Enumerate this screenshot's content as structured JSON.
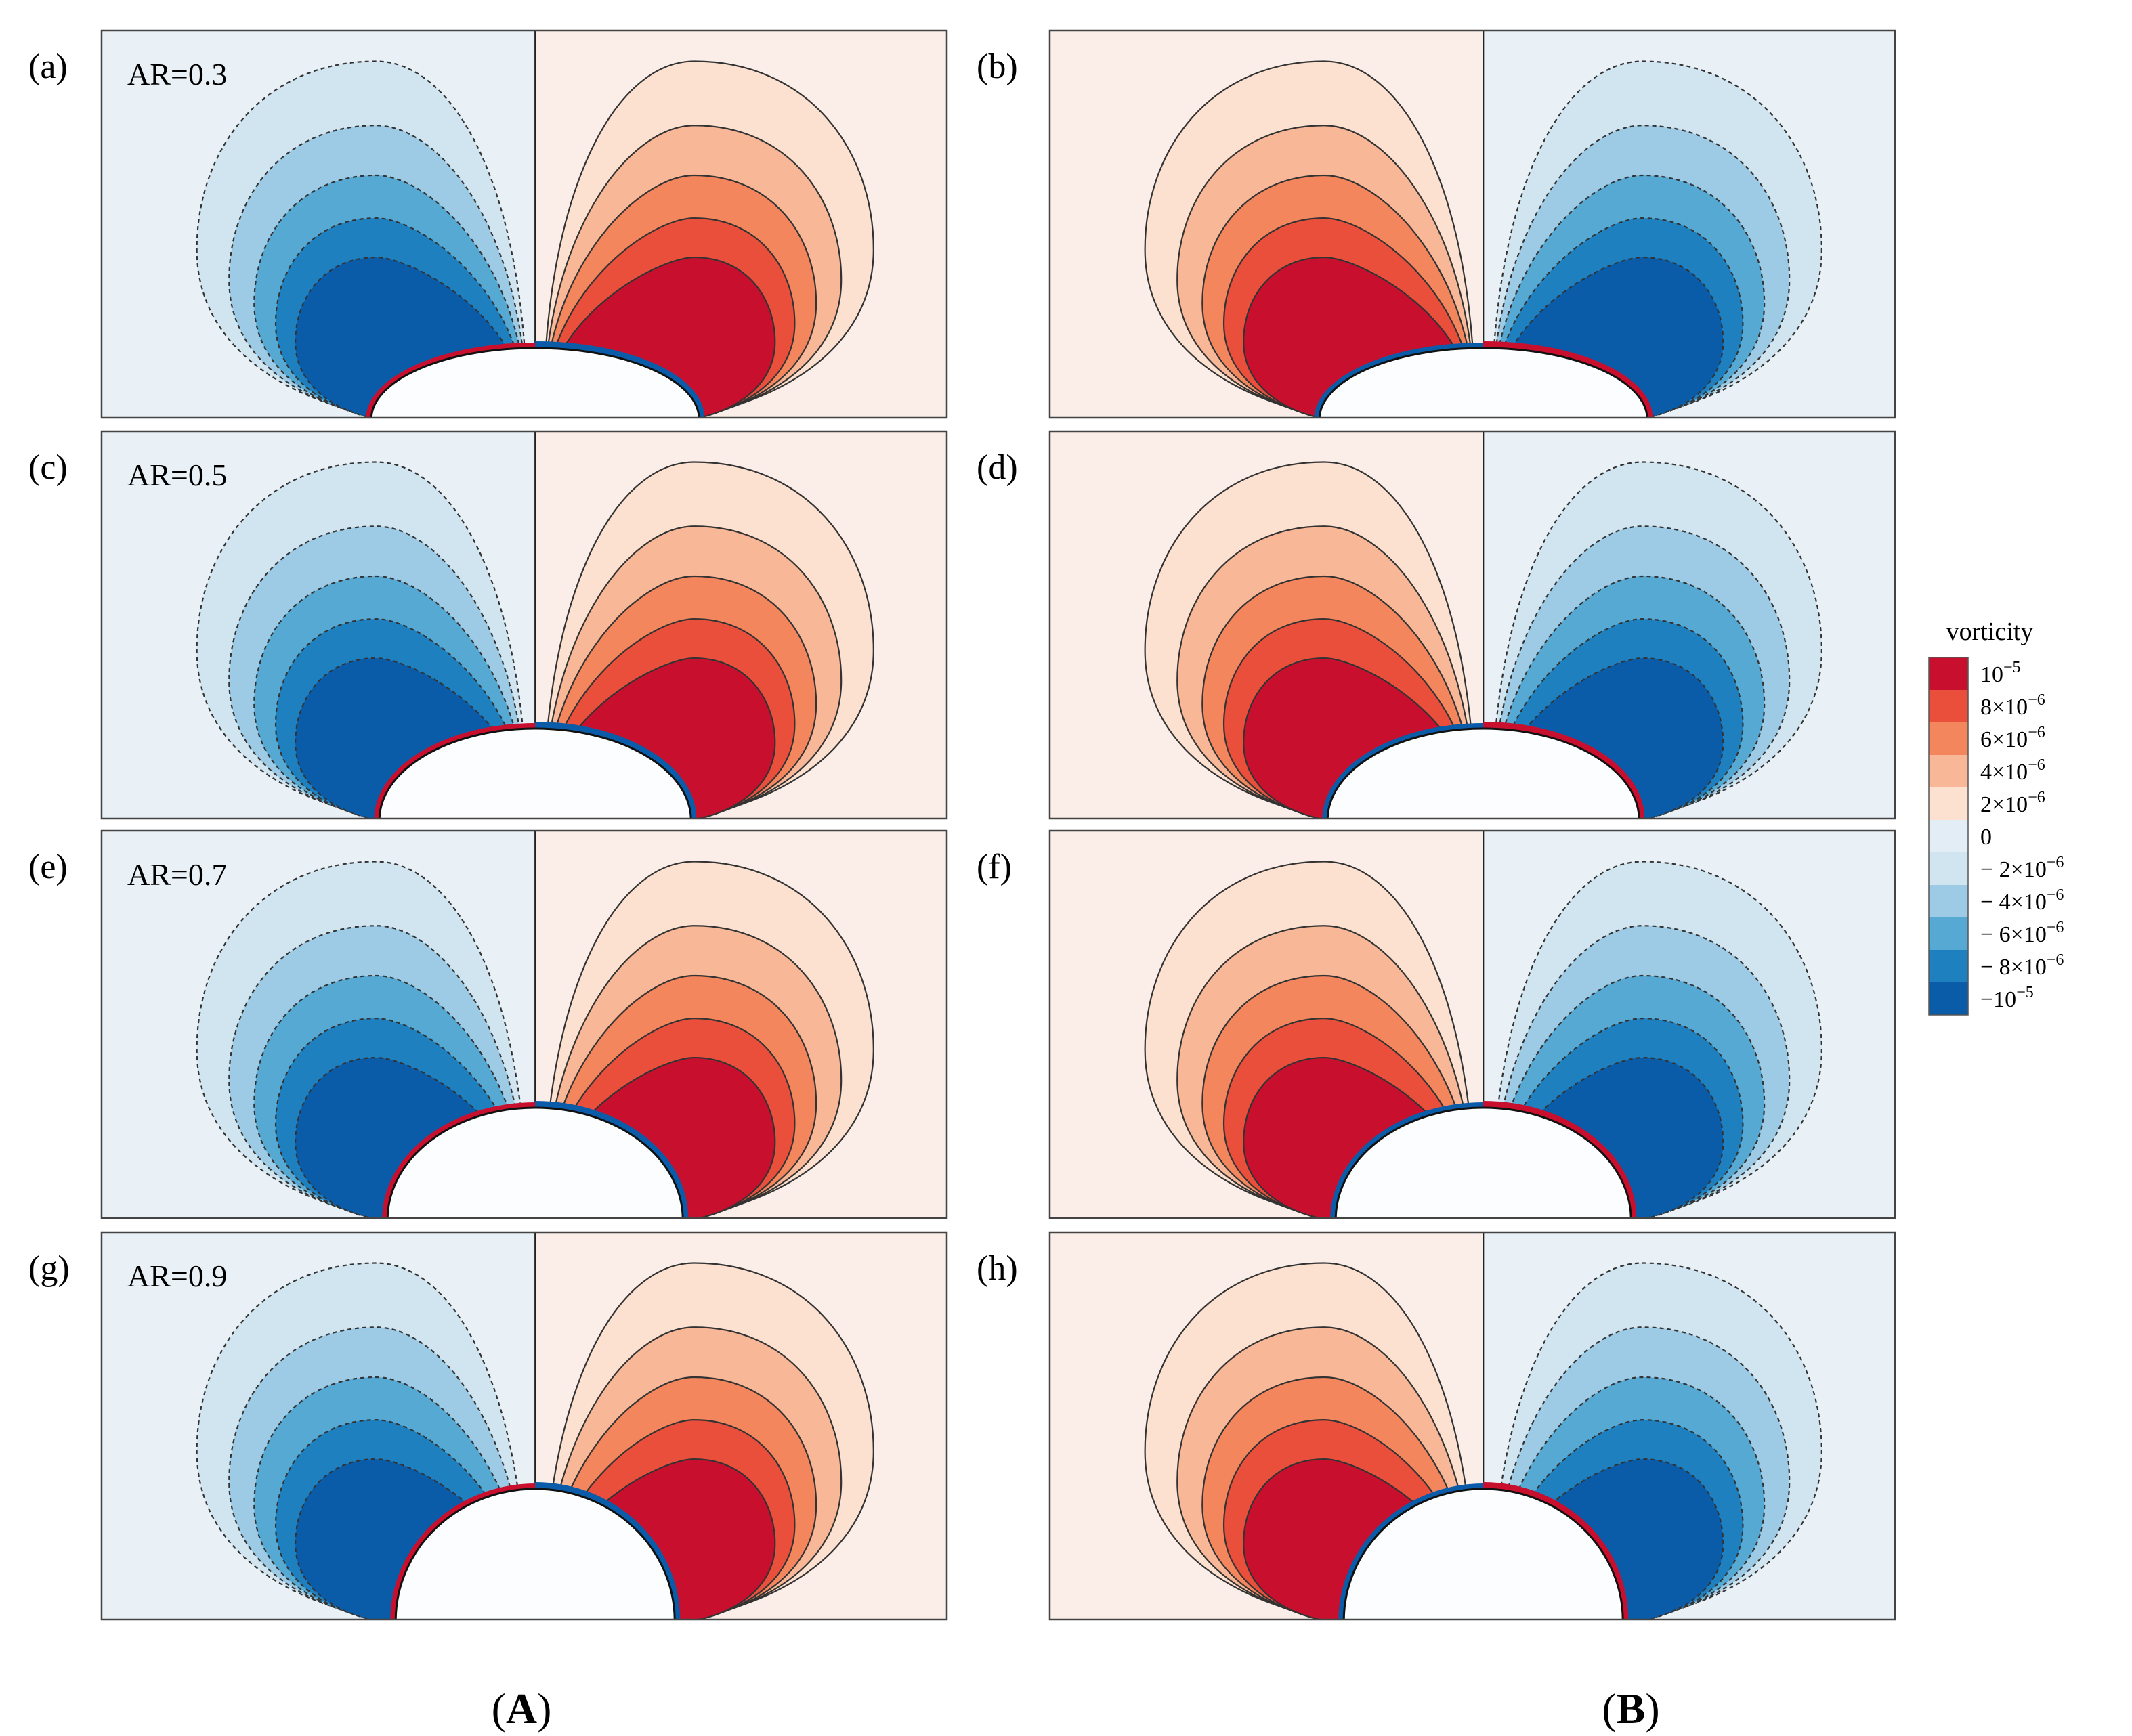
{
  "figure": {
    "panels": [
      {
        "id": "a",
        "label": "(a)",
        "ar": "AR=0.3",
        "mirror": false,
        "row": 0,
        "ratio": 0.3
      },
      {
        "id": "b",
        "label": "(b)",
        "ar": "",
        "mirror": true,
        "row": 0,
        "ratio": 0.3
      },
      {
        "id": "c",
        "label": "(c)",
        "ar": "AR=0.5",
        "mirror": false,
        "row": 1,
        "ratio": 0.5
      },
      {
        "id": "d",
        "label": "(d)",
        "ar": "",
        "mirror": true,
        "row": 1,
        "ratio": 0.5
      },
      {
        "id": "e",
        "label": "(e)",
        "ar": "AR=0.7",
        "mirror": false,
        "row": 2,
        "ratio": 0.7
      },
      {
        "id": "f",
        "label": "(f)",
        "ar": "",
        "mirror": true,
        "row": 2,
        "ratio": 0.7
      },
      {
        "id": "g",
        "label": "(g)",
        "ar": "AR=0.9",
        "mirror": false,
        "row": 3,
        "ratio": 0.9
      },
      {
        "id": "h",
        "label": "(h)",
        "ar": "",
        "mirror": true,
        "row": 3,
        "ratio": 0.9
      }
    ],
    "group_labels": {
      "left": "A",
      "right": "B"
    },
    "colorbar": {
      "title": "vorticity",
      "levels": [
        {
          "color": "#c8102e",
          "label": "10",
          "exp": "−5"
        },
        {
          "color": "#ea4f3c",
          "label": "8×10",
          "exp": "−6"
        },
        {
          "color": "#f4865e",
          "label": "6×10",
          "exp": "−6"
        },
        {
          "color": "#f8b797",
          "label": "4×10",
          "exp": "−6"
        },
        {
          "color": "#fde1d0",
          "label": "2×10",
          "exp": "−6"
        },
        {
          "color": "#e2edf5",
          "label": "0",
          "exp": ""
        },
        {
          "color": "#d1e5f1",
          "label": "− 2×10",
          "exp": "−6"
        },
        {
          "color": "#9dcae4",
          "label": "− 4×10",
          "exp": "−6"
        },
        {
          "color": "#55a9d3",
          "label": "− 6×10",
          "exp": "−6"
        },
        {
          "color": "#1f80c0",
          "label": "− 8×10",
          "exp": "−6"
        },
        {
          "color": "#0a5ca9",
          "label": "−10",
          "exp": "−5"
        }
      ]
    },
    "background_colors": {
      "positive": "#fbeee8",
      "negative": "#e9f1f6"
    }
  }
}
